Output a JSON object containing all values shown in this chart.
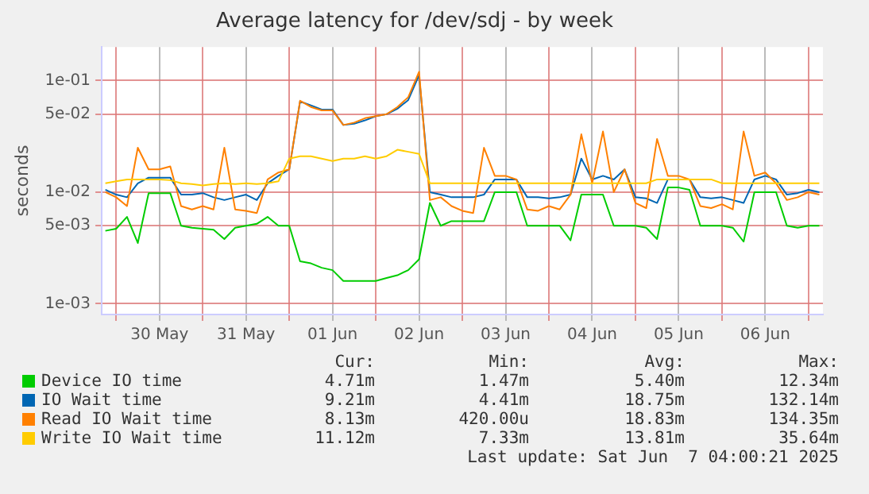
{
  "chart_data": {
    "type": "line",
    "title": "Average latency for /dev/sdj - by week",
    "ylabel": "seconds",
    "log": "y",
    "grid": true,
    "legend": "bottom",
    "marker": "none",
    "line_style": "solid",
    "x": [
      "2025-05-29T21:00",
      "2025-05-30T00:00",
      "2025-05-30T03:00",
      "2025-05-30T06:00",
      "2025-05-30T09:00",
      "2025-05-30T12:00",
      "2025-05-30T15:00",
      "2025-05-30T18:00",
      "2025-05-30T21:00",
      "2025-05-31T00:00",
      "2025-05-31T03:00",
      "2025-05-31T06:00",
      "2025-05-31T09:00",
      "2025-05-31T12:00",
      "2025-05-31T15:00",
      "2025-05-31T18:00",
      "2025-05-31T21:00",
      "2025-06-01T00:00",
      "2025-06-01T03:00",
      "2025-06-01T06:00",
      "2025-06-01T09:00",
      "2025-06-01T12:00",
      "2025-06-01T15:00",
      "2025-06-01T18:00",
      "2025-06-01T21:00",
      "2025-06-02T00:00",
      "2025-06-02T03:00",
      "2025-06-02T06:00",
      "2025-06-02T09:00",
      "2025-06-02T12:00",
      "2025-06-02T15:00",
      "2025-06-02T18:00",
      "2025-06-02T21:00",
      "2025-06-03T00:00",
      "2025-06-03T03:00",
      "2025-06-03T06:00",
      "2025-06-03T09:00",
      "2025-06-03T12:00",
      "2025-06-03T15:00",
      "2025-06-03T18:00",
      "2025-06-03T21:00",
      "2025-06-04T00:00",
      "2025-06-04T03:00",
      "2025-06-04T06:00",
      "2025-06-04T09:00",
      "2025-06-04T12:00",
      "2025-06-04T15:00",
      "2025-06-04T18:00",
      "2025-06-04T21:00",
      "2025-06-05T00:00",
      "2025-06-05T03:00",
      "2025-06-05T06:00",
      "2025-06-05T09:00",
      "2025-06-05T12:00",
      "2025-06-05T15:00",
      "2025-06-05T18:00",
      "2025-06-05T21:00",
      "2025-06-06T00:00",
      "2025-06-06T03:00",
      "2025-06-06T06:00",
      "2025-06-06T09:00",
      "2025-06-06T12:00",
      "2025-06-06T15:00",
      "2025-06-06T18:00",
      "2025-06-06T21:00",
      "2025-06-07T00:00",
      "2025-06-07T03:00"
    ],
    "xlim": [
      "2025-05-29T20:00",
      "2025-06-07T04:00"
    ],
    "xticks": [
      {
        "value": "2025-05-30T00:00",
        "label": null
      },
      {
        "value": "2025-05-30T12:00",
        "label": "30 May"
      },
      {
        "value": "2025-05-31T00:00",
        "label": null
      },
      {
        "value": "2025-05-31T12:00",
        "label": "31 May"
      },
      {
        "value": "2025-06-01T00:00",
        "label": null
      },
      {
        "value": "2025-06-01T12:00",
        "label": "01 Jun"
      },
      {
        "value": "2025-06-02T00:00",
        "label": null
      },
      {
        "value": "2025-06-02T12:00",
        "label": "02 Jun"
      },
      {
        "value": "2025-06-03T00:00",
        "label": null
      },
      {
        "value": "2025-06-03T12:00",
        "label": "03 Jun"
      },
      {
        "value": "2025-06-04T00:00",
        "label": null
      },
      {
        "value": "2025-06-04T12:00",
        "label": "04 Jun"
      },
      {
        "value": "2025-06-05T00:00",
        "label": null
      },
      {
        "value": "2025-06-05T12:00",
        "label": "05 Jun"
      },
      {
        "value": "2025-06-06T00:00",
        "label": null
      },
      {
        "value": "2025-06-06T12:00",
        "label": "06 Jun"
      },
      {
        "value": "2025-06-07T00:00",
        "label": null
      }
    ],
    "ylim": [
      0.0008,
      0.2
    ],
    "yticks": [
      {
        "value": 0.001,
        "label": "1e-03"
      },
      {
        "value": 0.005,
        "label": "5e-03"
      },
      {
        "value": 0.01,
        "label": "1e-02"
      },
      {
        "value": 0.05,
        "label": "5e-02"
      },
      {
        "value": 0.1,
        "label": "1e-01"
      }
    ],
    "series": [
      {
        "name": "Device IO time",
        "color": "#00cc00",
        "values": [
          0.0045,
          0.0047,
          0.006,
          0.0035,
          0.0098,
          0.0098,
          0.0098,
          0.005,
          0.0048,
          0.0047,
          0.0046,
          0.0038,
          0.0048,
          0.005,
          0.0052,
          0.006,
          0.005,
          0.005,
          0.0024,
          0.0023,
          0.0021,
          0.002,
          0.0016,
          0.0016,
          0.0016,
          0.0016,
          0.0017,
          0.0018,
          0.002,
          0.0025,
          0.008,
          0.005,
          0.0055,
          0.0055,
          0.0055,
          0.0055,
          0.01,
          0.01,
          0.01,
          0.005,
          0.005,
          0.005,
          0.005,
          0.0037,
          0.0095,
          0.0095,
          0.0095,
          0.005,
          0.005,
          0.005,
          0.0048,
          0.0038,
          0.011,
          0.011,
          0.0105,
          0.005,
          0.005,
          0.005,
          0.0048,
          0.0036,
          0.01,
          0.01,
          0.01,
          0.005,
          0.0048,
          0.005,
          0.005
        ]
      },
      {
        "name": "IO Wait time",
        "color": "#0066b3",
        "values": [
          0.0105,
          0.0095,
          0.009,
          0.012,
          0.0135,
          0.0135,
          0.0135,
          0.0095,
          0.0095,
          0.0098,
          0.009,
          0.0085,
          0.009,
          0.0095,
          0.0085,
          0.012,
          0.014,
          0.016,
          0.065,
          0.06,
          0.055,
          0.055,
          0.04,
          0.041,
          0.044,
          0.048,
          0.05,
          0.056,
          0.067,
          0.112,
          0.01,
          0.0095,
          0.009,
          0.009,
          0.009,
          0.0095,
          0.013,
          0.013,
          0.013,
          0.009,
          0.009,
          0.0088,
          0.009,
          0.0095,
          0.02,
          0.013,
          0.014,
          0.013,
          0.016,
          0.009,
          0.0088,
          0.008,
          0.013,
          0.013,
          0.013,
          0.009,
          0.0088,
          0.009,
          0.0085,
          0.008,
          0.013,
          0.014,
          0.013,
          0.0095,
          0.0098,
          0.0105,
          0.01
        ]
      },
      {
        "name": "Read IO Wait time",
        "color": "#ff8000",
        "values": [
          0.01,
          0.009,
          0.0075,
          0.025,
          0.016,
          0.016,
          0.017,
          0.0075,
          0.007,
          0.0075,
          0.007,
          0.025,
          0.007,
          0.0068,
          0.0065,
          0.013,
          0.015,
          0.016,
          0.066,
          0.058,
          0.054,
          0.054,
          0.04,
          0.042,
          0.046,
          0.048,
          0.05,
          0.058,
          0.071,
          0.12,
          0.0085,
          0.009,
          0.0075,
          0.0068,
          0.0065,
          0.025,
          0.014,
          0.014,
          0.013,
          0.007,
          0.0068,
          0.0075,
          0.007,
          0.0095,
          0.033,
          0.012,
          0.035,
          0.01,
          0.016,
          0.008,
          0.0072,
          0.03,
          0.014,
          0.014,
          0.013,
          0.0075,
          0.0072,
          0.0078,
          0.007,
          0.035,
          0.014,
          0.015,
          0.012,
          0.0085,
          0.009,
          0.01,
          0.0095
        ]
      },
      {
        "name": "Write IO Wait time",
        "color": "#ffcc00",
        "values": [
          0.012,
          0.0125,
          0.013,
          0.013,
          0.013,
          0.013,
          0.0128,
          0.012,
          0.0118,
          0.0115,
          0.0118,
          0.012,
          0.0118,
          0.012,
          0.0118,
          0.012,
          0.0125,
          0.02,
          0.021,
          0.021,
          0.02,
          0.019,
          0.02,
          0.02,
          0.021,
          0.02,
          0.021,
          0.024,
          0.023,
          0.022,
          0.012,
          0.012,
          0.012,
          0.012,
          0.012,
          0.012,
          0.012,
          0.012,
          0.012,
          0.012,
          0.012,
          0.012,
          0.012,
          0.012,
          0.012,
          0.012,
          0.012,
          0.012,
          0.012,
          0.012,
          0.012,
          0.013,
          0.013,
          0.013,
          0.013,
          0.013,
          0.013,
          0.012,
          0.012,
          0.012,
          0.012,
          0.012,
          0.012,
          0.012,
          0.012,
          0.012,
          0.012
        ]
      }
    ],
    "annotations": [
      "Cur:",
      "Min:",
      "Avg:",
      "Max:",
      "4.71m",
      "1.47m",
      "5.40m",
      "12.34m",
      "9.21m",
      "4.41m",
      "18.75m",
      "132.14m",
      "8.13m",
      "420.00u",
      "18.83m",
      "134.35m",
      "11.12m",
      "7.33m",
      "13.81m",
      "35.64m",
      "Last update: Sat Jun  7 04:00:21 2025"
    ]
  }
}
